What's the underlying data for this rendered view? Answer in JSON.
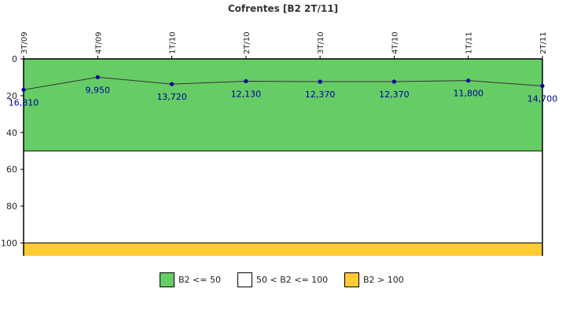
{
  "title": "Cofrentes [B2 2T/11]",
  "chart_data": {
    "type": "line",
    "title": "Cofrentes [B2 2T/11]",
    "categories": [
      "3T/09",
      "4T/09",
      "1T/10",
      "2T/10",
      "3T/10",
      "4T/10",
      "1T/11",
      "2T/11"
    ],
    "series": [
      {
        "values": [
          16.81,
          9.95,
          13.72,
          12.13,
          12.37,
          12.37,
          11.8,
          14.7
        ],
        "point_labels": [
          "16,810",
          "9,950",
          "13,720",
          "12,130",
          "12,370",
          "12,370",
          "11,800",
          "14,700"
        ],
        "color": "#000099",
        "line_color": "#333333"
      }
    ],
    "y_axis": {
      "ticks": [
        0,
        20,
        40,
        60,
        80,
        100
      ],
      "range": [
        0,
        107
      ],
      "inverted": true
    },
    "bands": [
      {
        "label": "B2 <= 50",
        "from": 0,
        "to": 50,
        "color": "#66cc66"
      },
      {
        "label": "50 < B2 <= 100",
        "from": 50,
        "to": 100,
        "color": "#ffffff"
      },
      {
        "label": "B2 > 100",
        "from": 100,
        "to": 107,
        "color": "#ffcc33"
      }
    ],
    "grid": false,
    "legend_position": "bottom"
  },
  "legend": [
    {
      "label": "B2 <= 50",
      "color": "#66cc66"
    },
    {
      "label": "50 < B2 <= 100",
      "color": "#ffffff"
    },
    {
      "label": "B2 > 100",
      "color": "#ffcc33"
    }
  ]
}
